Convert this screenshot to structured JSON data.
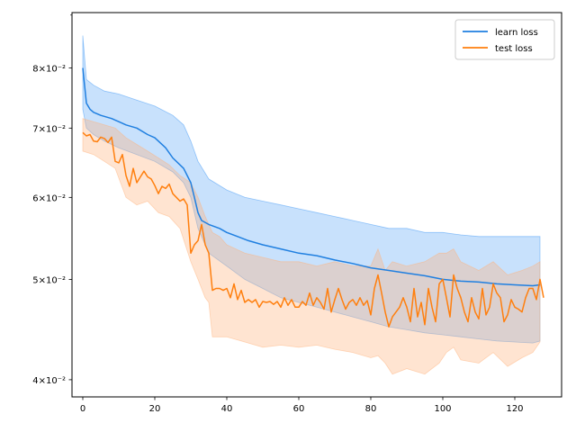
{
  "chart_data": {
    "type": "line",
    "yscale": "log",
    "xlim": [
      -3,
      133
    ],
    "ylim": [
      0.0385,
      0.0905
    ],
    "xticks": [
      0,
      20,
      40,
      60,
      80,
      100,
      120
    ],
    "xtick_labels": [
      "0",
      "20",
      "40",
      "60",
      "80",
      "100",
      "120"
    ],
    "yticks": [
      0.04,
      0.05,
      0.06,
      0.07,
      0.08
    ],
    "ytick_labels": [
      "4×10⁻²",
      "5×10⁻²",
      "6×10⁻²",
      "7×10⁻²",
      "8×10⁻²"
    ],
    "legend_position": "top-right",
    "grid": false,
    "series": [
      {
        "name": "learn loss",
        "color": "#1f7fe0",
        "band_color": "#3b95f5",
        "points": [
          [
            0,
            0.08
          ],
          [
            1,
            0.074
          ],
          [
            2,
            0.073
          ],
          [
            3,
            0.0725
          ],
          [
            5,
            0.072
          ],
          [
            8,
            0.0715
          ],
          [
            10,
            0.071
          ],
          [
            12,
            0.0705
          ],
          [
            15,
            0.07
          ],
          [
            18,
            0.069
          ],
          [
            20,
            0.0685
          ],
          [
            23,
            0.067
          ],
          [
            25,
            0.0655
          ],
          [
            28,
            0.064
          ],
          [
            30,
            0.062
          ],
          [
            31,
            0.06
          ],
          [
            32,
            0.058
          ],
          [
            33,
            0.057
          ],
          [
            35,
            0.0565
          ],
          [
            38,
            0.056
          ],
          [
            40,
            0.0555
          ],
          [
            43,
            0.055
          ],
          [
            46,
            0.0545
          ],
          [
            50,
            0.054
          ],
          [
            55,
            0.0535
          ],
          [
            60,
            0.053
          ],
          [
            65,
            0.0527
          ],
          [
            70,
            0.0522
          ],
          [
            75,
            0.0518
          ],
          [
            80,
            0.0513
          ],
          [
            85,
            0.051
          ],
          [
            90,
            0.0507
          ],
          [
            95,
            0.0504
          ],
          [
            100,
            0.05
          ],
          [
            105,
            0.0498
          ],
          [
            110,
            0.0497
          ],
          [
            115,
            0.0495
          ],
          [
            120,
            0.0494
          ],
          [
            125,
            0.0493
          ],
          [
            127,
            0.0494
          ]
        ],
        "upper": [
          [
            0,
            0.086
          ],
          [
            1,
            0.078
          ],
          [
            3,
            0.077
          ],
          [
            6,
            0.076
          ],
          [
            10,
            0.0755
          ],
          [
            15,
            0.0745
          ],
          [
            20,
            0.0735
          ],
          [
            25,
            0.072
          ],
          [
            28,
            0.0705
          ],
          [
            30,
            0.068
          ],
          [
            32,
            0.065
          ],
          [
            35,
            0.0625
          ],
          [
            40,
            0.061
          ],
          [
            45,
            0.06
          ],
          [
            50,
            0.0595
          ],
          [
            55,
            0.059
          ],
          [
            60,
            0.0585
          ],
          [
            65,
            0.058
          ],
          [
            70,
            0.0575
          ],
          [
            75,
            0.057
          ],
          [
            80,
            0.0565
          ],
          [
            85,
            0.056
          ],
          [
            90,
            0.056
          ],
          [
            95,
            0.0555
          ],
          [
            100,
            0.0555
          ],
          [
            105,
            0.0552
          ],
          [
            110,
            0.055
          ],
          [
            115,
            0.055
          ],
          [
            120,
            0.055
          ],
          [
            125,
            0.055
          ],
          [
            127,
            0.055
          ]
        ],
        "lower": [
          [
            0,
            0.073
          ],
          [
            1,
            0.07
          ],
          [
            3,
            0.069
          ],
          [
            6,
            0.068
          ],
          [
            10,
            0.067
          ],
          [
            15,
            0.066
          ],
          [
            20,
            0.065
          ],
          [
            25,
            0.0635
          ],
          [
            28,
            0.062
          ],
          [
            30,
            0.06
          ],
          [
            32,
            0.056
          ],
          [
            35,
            0.053
          ],
          [
            40,
            0.0515
          ],
          [
            45,
            0.05
          ],
          [
            50,
            0.049
          ],
          [
            55,
            0.048
          ],
          [
            60,
            0.0475
          ],
          [
            65,
            0.047
          ],
          [
            70,
            0.0465
          ],
          [
            75,
            0.046
          ],
          [
            80,
            0.0455
          ],
          [
            85,
            0.045
          ],
          [
            90,
            0.0447
          ],
          [
            95,
            0.0444
          ],
          [
            100,
            0.0442
          ],
          [
            105,
            0.044
          ],
          [
            110,
            0.0438
          ],
          [
            115,
            0.0436
          ],
          [
            120,
            0.0435
          ],
          [
            125,
            0.0434
          ],
          [
            127,
            0.0436
          ]
        ]
      },
      {
        "name": "test loss",
        "color": "#ff7f0e",
        "band_color": "#ffb27a",
        "points": [
          [
            0,
            0.0693
          ],
          [
            1,
            0.0688
          ],
          [
            2,
            0.069
          ],
          [
            3,
            0.068
          ],
          [
            4,
            0.0679
          ],
          [
            5,
            0.0686
          ],
          [
            6,
            0.0684
          ],
          [
            7,
            0.0678
          ],
          [
            8,
            0.0686
          ],
          [
            9,
            0.065
          ],
          [
            10,
            0.0648
          ],
          [
            11,
            0.066
          ],
          [
            12,
            0.063
          ],
          [
            13,
            0.0615
          ],
          [
            14,
            0.064
          ],
          [
            15,
            0.062
          ],
          [
            16,
            0.0628
          ],
          [
            17,
            0.0636
          ],
          [
            18,
            0.0628
          ],
          [
            19,
            0.0625
          ],
          [
            20,
            0.0616
          ],
          [
            21,
            0.0605
          ],
          [
            22,
            0.0615
          ],
          [
            23,
            0.0612
          ],
          [
            24,
            0.0618
          ],
          [
            25,
            0.0605
          ],
          [
            26,
            0.06
          ],
          [
            27,
            0.0595
          ],
          [
            28,
            0.0598
          ],
          [
            29,
            0.059
          ],
          [
            30,
            0.053
          ],
          [
            31,
            0.054
          ],
          [
            32,
            0.0545
          ],
          [
            33,
            0.0565
          ],
          [
            34,
            0.054
          ],
          [
            35,
            0.053
          ],
          [
            36,
            0.0488
          ],
          [
            37,
            0.049
          ],
          [
            38,
            0.049
          ],
          [
            39,
            0.0488
          ],
          [
            40,
            0.049
          ],
          [
            41,
            0.048
          ],
          [
            42,
            0.0495
          ],
          [
            43,
            0.0478
          ],
          [
            44,
            0.0488
          ],
          [
            45,
            0.0475
          ],
          [
            46,
            0.0478
          ],
          [
            47,
            0.0475
          ],
          [
            48,
            0.0478
          ],
          [
            49,
            0.047
          ],
          [
            50,
            0.0476
          ],
          [
            51,
            0.0475
          ],
          [
            52,
            0.0476
          ],
          [
            53,
            0.0473
          ],
          [
            54,
            0.0476
          ],
          [
            55,
            0.047
          ],
          [
            56,
            0.048
          ],
          [
            57,
            0.0472
          ],
          [
            58,
            0.0478
          ],
          [
            59,
            0.047
          ],
          [
            60,
            0.047
          ],
          [
            61,
            0.0476
          ],
          [
            62,
            0.0472
          ],
          [
            63,
            0.0485
          ],
          [
            64,
            0.0472
          ],
          [
            65,
            0.048
          ],
          [
            66,
            0.0475
          ],
          [
            67,
            0.0468
          ],
          [
            68,
            0.049
          ],
          [
            69,
            0.0465
          ],
          [
            70,
            0.0478
          ],
          [
            71,
            0.049
          ],
          [
            72,
            0.0478
          ],
          [
            73,
            0.0468
          ],
          [
            74,
            0.0475
          ],
          [
            75,
            0.0478
          ],
          [
            76,
            0.0472
          ],
          [
            77,
            0.048
          ],
          [
            78,
            0.0472
          ],
          [
            79,
            0.0477
          ],
          [
            80,
            0.0462
          ],
          [
            81,
            0.049
          ],
          [
            82,
            0.0505
          ],
          [
            83,
            0.0485
          ],
          [
            84,
            0.0465
          ],
          [
            85,
            0.045
          ],
          [
            86,
            0.046
          ],
          [
            87,
            0.0465
          ],
          [
            88,
            0.047
          ],
          [
            89,
            0.048
          ],
          [
            90,
            0.047
          ],
          [
            91,
            0.0455
          ],
          [
            92,
            0.049
          ],
          [
            93,
            0.046
          ],
          [
            94,
            0.0475
          ],
          [
            95,
            0.0452
          ],
          [
            96,
            0.049
          ],
          [
            97,
            0.047
          ],
          [
            98,
            0.0455
          ],
          [
            99,
            0.0495
          ],
          [
            100,
            0.05
          ],
          [
            101,
            0.048
          ],
          [
            102,
            0.046
          ],
          [
            103,
            0.0505
          ],
          [
            104,
            0.049
          ],
          [
            105,
            0.048
          ],
          [
            106,
            0.0465
          ],
          [
            107,
            0.0455
          ],
          [
            108,
            0.048
          ],
          [
            109,
            0.0465
          ],
          [
            110,
            0.0458
          ],
          [
            111,
            0.049
          ],
          [
            112,
            0.0462
          ],
          [
            113,
            0.047
          ],
          [
            114,
            0.0495
          ],
          [
            115,
            0.0485
          ],
          [
            116,
            0.048
          ],
          [
            117,
            0.0455
          ],
          [
            118,
            0.0462
          ],
          [
            119,
            0.0478
          ],
          [
            120,
            0.047
          ],
          [
            121,
            0.0468
          ],
          [
            122,
            0.0465
          ],
          [
            123,
            0.048
          ],
          [
            124,
            0.049
          ],
          [
            125,
            0.049
          ],
          [
            126,
            0.0478
          ],
          [
            127,
            0.05
          ],
          [
            128,
            0.048
          ]
        ],
        "upper": [
          [
            0,
            0.0715
          ],
          [
            3,
            0.071
          ],
          [
            6,
            0.0705
          ],
          [
            9,
            0.07
          ],
          [
            12,
            0.0685
          ],
          [
            15,
            0.0675
          ],
          [
            18,
            0.0665
          ],
          [
            21,
            0.0655
          ],
          [
            24,
            0.0645
          ],
          [
            27,
            0.063
          ],
          [
            30,
            0.062
          ],
          [
            32,
            0.06
          ],
          [
            34,
            0.0575
          ],
          [
            36,
            0.0555
          ],
          [
            38,
            0.055
          ],
          [
            40,
            0.054
          ],
          [
            45,
            0.053
          ],
          [
            50,
            0.0525
          ],
          [
            55,
            0.052
          ],
          [
            60,
            0.052
          ],
          [
            65,
            0.0515
          ],
          [
            70,
            0.052
          ],
          [
            75,
            0.0515
          ],
          [
            80,
            0.0515
          ],
          [
            82,
            0.0535
          ],
          [
            84,
            0.051
          ],
          [
            86,
            0.052
          ],
          [
            90,
            0.0515
          ],
          [
            95,
            0.052
          ],
          [
            99,
            0.053
          ],
          [
            101,
            0.053
          ],
          [
            103,
            0.0535
          ],
          [
            105,
            0.052
          ],
          [
            110,
            0.051
          ],
          [
            114,
            0.052
          ],
          [
            118,
            0.0505
          ],
          [
            122,
            0.051
          ],
          [
            125,
            0.0515
          ],
          [
            127,
            0.052
          ]
        ],
        "lower": [
          [
            0,
            0.0665
          ],
          [
            3,
            0.066
          ],
          [
            6,
            0.065
          ],
          [
            9,
            0.064
          ],
          [
            12,
            0.06
          ],
          [
            15,
            0.059
          ],
          [
            18,
            0.0595
          ],
          [
            21,
            0.058
          ],
          [
            24,
            0.0575
          ],
          [
            27,
            0.056
          ],
          [
            30,
            0.052
          ],
          [
            32,
            0.05
          ],
          [
            34,
            0.048
          ],
          [
            35,
            0.0475
          ],
          [
            36,
            0.044
          ],
          [
            40,
            0.044
          ],
          [
            45,
            0.0435
          ],
          [
            50,
            0.043
          ],
          [
            55,
            0.0432
          ],
          [
            60,
            0.043
          ],
          [
            65,
            0.0432
          ],
          [
            70,
            0.0428
          ],
          [
            75,
            0.0425
          ],
          [
            80,
            0.042
          ],
          [
            82,
            0.0422
          ],
          [
            84,
            0.0415
          ],
          [
            86,
            0.0405
          ],
          [
            90,
            0.041
          ],
          [
            95,
            0.0405
          ],
          [
            99,
            0.0415
          ],
          [
            101,
            0.0425
          ],
          [
            103,
            0.043
          ],
          [
            105,
            0.0418
          ],
          [
            110,
            0.0415
          ],
          [
            114,
            0.0425
          ],
          [
            118,
            0.0412
          ],
          [
            122,
            0.042
          ],
          [
            125,
            0.0425
          ],
          [
            127,
            0.0435
          ]
        ]
      }
    ]
  }
}
